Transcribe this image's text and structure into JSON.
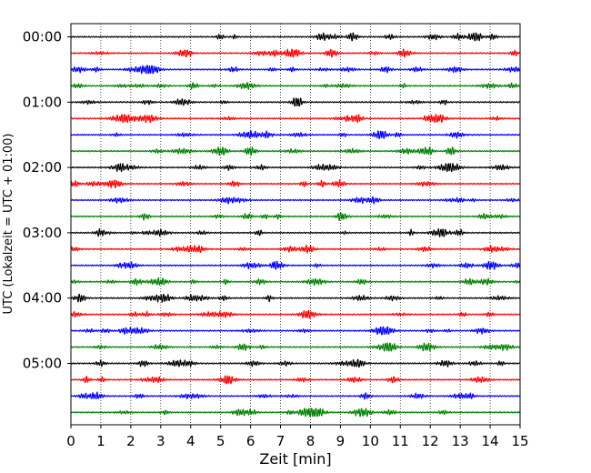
{
  "chart_data": {
    "type": "line",
    "title": "",
    "xlabel": "Zeit  [min]",
    "ylabel": "UTC (Lokalzeit = UTC + 01:00)",
    "x_unit": "min",
    "xlim": [
      0,
      15
    ],
    "x_ticks": [
      0,
      1,
      2,
      3,
      4,
      5,
      6,
      7,
      8,
      9,
      10,
      11,
      12,
      13,
      14,
      15
    ],
    "x_tick_labels": [
      "0",
      "1",
      "2",
      "3",
      "4",
      "5",
      "6",
      "7",
      "8",
      "9",
      "10",
      "11",
      "12",
      "13",
      "14",
      "15"
    ],
    "y_tick_labels": [
      "00:00",
      "01:00",
      "02:00",
      "03:00",
      "04:00",
      "05:00"
    ],
    "y_tick_rows": [
      0,
      4,
      8,
      12,
      16,
      20
    ],
    "trace_interval_minutes": 15,
    "traces_per_hour": 4,
    "trace_count": 24,
    "trace_color_cycle": [
      "#000000",
      "#ff0000",
      "#0000ff",
      "#008000"
    ],
    "grid": {
      "x": true,
      "y": false,
      "style": "dotted"
    },
    "colors": {
      "black": "#000000",
      "red": "#ff0000",
      "blue": "#0000ff",
      "green": "#008000",
      "frame": "#000000",
      "background": "#ffffff"
    }
  }
}
